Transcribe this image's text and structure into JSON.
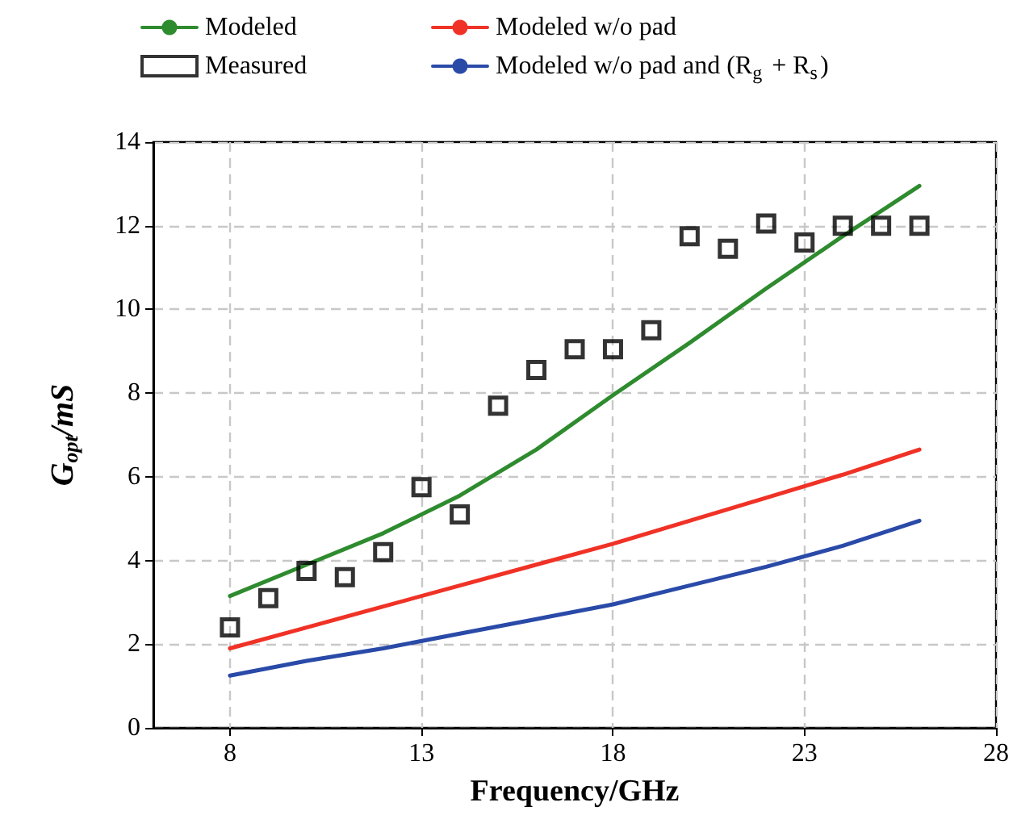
{
  "chart_data": {
    "type": "line",
    "xlabel": "Frequency/GHz",
    "ylabel": "G$_{opt}$/mS",
    "xlim": [
      6,
      28
    ],
    "xticks": [
      8,
      13,
      18,
      23,
      28
    ],
    "ylim": [
      0,
      14
    ],
    "yticks": [
      0,
      2,
      4,
      6,
      8,
      10,
      12,
      14
    ],
    "grid": true,
    "legend": "top",
    "marker": "none",
    "line_style": "solid",
    "series": [
      {
        "name": "Modeled",
        "color": "#2e8b2e",
        "x": [
          8,
          10,
          12,
          14,
          16,
          18,
          20,
          22,
          24,
          26
        ],
        "values": [
          3.15,
          3.9,
          4.65,
          5.55,
          6.65,
          7.95,
          9.2,
          10.5,
          11.75,
          12.95
        ]
      },
      {
        "name": "Modeled w/o pad",
        "color": "#f03226",
        "x": [
          8,
          10,
          12,
          14,
          16,
          18,
          20,
          22,
          24,
          26
        ],
        "values": [
          1.9,
          2.4,
          2.9,
          3.4,
          3.9,
          4.4,
          4.95,
          5.5,
          6.05,
          6.65
        ]
      },
      {
        "name": "Measured",
        "type": "scatter",
        "marker": "square",
        "color": "#000000",
        "x": [
          8,
          9,
          10,
          11,
          12,
          13,
          14,
          15,
          16,
          17,
          18,
          19,
          20,
          21,
          22,
          23,
          24,
          25,
          26
        ],
        "values": [
          2.4,
          3.1,
          3.75,
          3.6,
          4.2,
          5.75,
          5.1,
          7.7,
          8.55,
          9.05,
          9.05,
          9.5,
          11.75,
          11.45,
          12.05,
          11.6,
          12,
          12,
          12
        ]
      },
      {
        "name": "Modeled w/o pad and (R$_{g}$ + R$_{s}$)",
        "color": "#2a4aa8",
        "x": [
          8,
          10,
          12,
          14,
          16,
          18,
          20,
          22,
          24,
          26
        ],
        "values": [
          1.25,
          1.6,
          1.9,
          2.25,
          2.6,
          2.95,
          3.4,
          3.85,
          4.35,
          4.95
        ]
      }
    ]
  }
}
